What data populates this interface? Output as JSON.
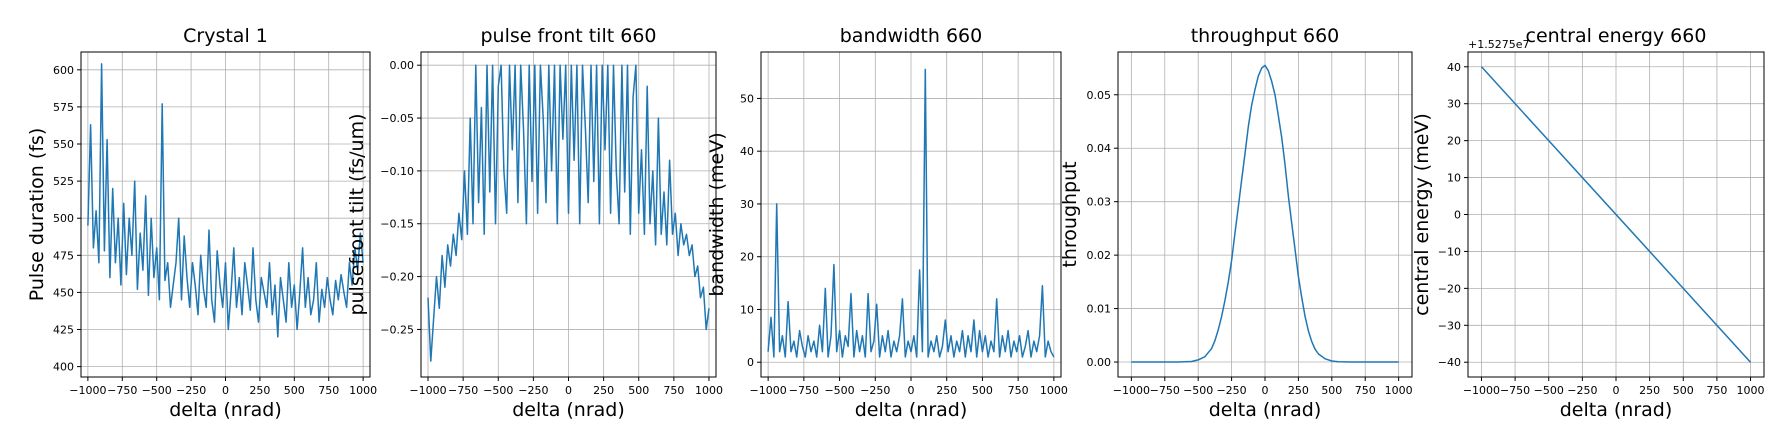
{
  "chart_data": [
    {
      "type": "line",
      "title": "Crystal 1",
      "xlabel": "delta (nrad)",
      "ylabel": "Pulse duration (fs)",
      "xlim": [
        -1050,
        1050
      ],
      "ylim": [
        393,
        612
      ],
      "xticks": [
        -1000,
        -750,
        -500,
        -250,
        0,
        250,
        500,
        750,
        1000
      ],
      "yticks": [
        400,
        425,
        450,
        475,
        500,
        525,
        550,
        575,
        600
      ],
      "ytick_labels": [
        "400",
        "425",
        "450",
        "475",
        "500",
        "525",
        "550",
        "575",
        "600"
      ],
      "grid": true,
      "series": [
        {
          "x": [
            -1000,
            -980,
            -960,
            -940,
            -920,
            -900,
            -880,
            -860,
            -840,
            -820,
            -800,
            -780,
            -760,
            -740,
            -720,
            -700,
            -680,
            -660,
            -640,
            -620,
            -600,
            -580,
            -560,
            -540,
            -520,
            -500,
            -480,
            -460,
            -440,
            -420,
            -400,
            -380,
            -360,
            -340,
            -320,
            -300,
            -280,
            -260,
            -240,
            -220,
            -200,
            -180,
            -160,
            -140,
            -120,
            -100,
            -80,
            -60,
            -40,
            -20,
            0,
            20,
            40,
            60,
            80,
            100,
            120,
            140,
            160,
            180,
            200,
            220,
            240,
            260,
            280,
            300,
            320,
            340,
            360,
            380,
            400,
            420,
            440,
            460,
            480,
            500,
            520,
            540,
            560,
            580,
            600,
            620,
            640,
            660,
            680,
            700,
            720,
            740,
            760,
            780,
            800,
            820,
            840,
            860,
            880,
            900,
            920,
            940,
            960,
            980,
            1000
          ],
          "y": [
            495,
            563,
            480,
            505,
            470,
            604,
            478,
            553,
            460,
            520,
            470,
            500,
            455,
            510,
            462,
            500,
            475,
            525,
            452,
            490,
            465,
            515,
            448,
            500,
            460,
            480,
            445,
            577,
            458,
            470,
            440,
            455,
            470,
            500,
            445,
            488,
            460,
            440,
            470,
            455,
            435,
            475,
            452,
            440,
            492,
            445,
            430,
            478,
            455,
            440,
            470,
            425,
            450,
            480,
            440,
            460,
            435,
            470,
            455,
            438,
            480,
            445,
            430,
            460,
            450,
            440,
            470,
            435,
            455,
            420,
            460,
            445,
            430,
            470,
            440,
            455,
            425,
            450,
            480,
            440,
            460,
            435,
            445,
            470,
            430,
            452,
            440,
            460,
            445,
            435,
            458,
            445,
            462,
            450,
            440,
            470,
            455,
            480,
            465,
            490,
            470
          ]
        }
      ]
    },
    {
      "type": "line",
      "title": "pulse front tilt 660",
      "xlabel": "delta (nrad)",
      "ylabel": "pulsefront tilt (fs/um)",
      "xlim": [
        -1050,
        1050
      ],
      "ylim": [
        -0.295,
        0.0125
      ],
      "xticks": [
        -1000,
        -750,
        -500,
        -250,
        0,
        250,
        500,
        750,
        1000
      ],
      "yticks": [
        -0.25,
        -0.2,
        -0.15,
        -0.1,
        -0.05,
        0.0
      ],
      "ytick_labels": [
        "−0.25",
        "−0.20",
        "−0.15",
        "−0.10",
        "−0.05",
        "0.00"
      ],
      "grid": true,
      "series": [
        {
          "x": [
            -1000,
            -980,
            -960,
            -940,
            -920,
            -900,
            -880,
            -860,
            -840,
            -820,
            -800,
            -780,
            -760,
            -740,
            -720,
            -700,
            -680,
            -660,
            -640,
            -620,
            -600,
            -580,
            -560,
            -540,
            -520,
            -500,
            -480,
            -460,
            -440,
            -420,
            -400,
            -380,
            -360,
            -340,
            -320,
            -300,
            -280,
            -260,
            -240,
            -220,
            -200,
            -180,
            -160,
            -140,
            -120,
            -100,
            -80,
            -60,
            -40,
            -20,
            0,
            20,
            40,
            60,
            80,
            100,
            120,
            140,
            160,
            180,
            200,
            220,
            240,
            260,
            280,
            300,
            320,
            340,
            360,
            380,
            400,
            420,
            440,
            460,
            480,
            500,
            520,
            540,
            560,
            580,
            600,
            620,
            640,
            660,
            680,
            700,
            720,
            740,
            760,
            780,
            800,
            820,
            840,
            860,
            880,
            900,
            920,
            940,
            960,
            980,
            1000
          ],
          "y": [
            -0.22,
            -0.28,
            -0.24,
            -0.2,
            -0.23,
            -0.18,
            -0.21,
            -0.17,
            -0.19,
            -0.16,
            -0.18,
            -0.14,
            -0.165,
            -0.1,
            -0.16,
            -0.05,
            -0.15,
            0.0,
            -0.13,
            -0.04,
            -0.16,
            0.0,
            -0.12,
            0.0,
            -0.15,
            -0.02,
            0.0,
            -0.1,
            -0.14,
            0.0,
            -0.08,
            0.0,
            -0.13,
            0.0,
            -0.06,
            -0.15,
            0.0,
            -0.11,
            0.0,
            -0.14,
            0.0,
            -0.05,
            -0.13,
            0.0,
            -0.1,
            0.0,
            -0.15,
            0.0,
            -0.07,
            0.0,
            -0.14,
            0.0,
            -0.09,
            0.0,
            -0.15,
            0.0,
            -0.06,
            -0.13,
            0.0,
            -0.11,
            0.0,
            -0.15,
            0.0,
            -0.08,
            0.0,
            -0.14,
            0.0,
            -0.1,
            -0.15,
            0.0,
            -0.12,
            0.0,
            -0.16,
            -0.03,
            0.0,
            -0.14,
            -0.08,
            -0.16,
            -0.02,
            -0.15,
            -0.1,
            -0.17,
            -0.05,
            -0.16,
            -0.12,
            -0.17,
            -0.09,
            -0.16,
            -0.14,
            -0.18,
            -0.15,
            -0.17,
            -0.16,
            -0.18,
            -0.17,
            -0.2,
            -0.19,
            -0.22,
            -0.21,
            -0.25,
            -0.23
          ]
        }
      ]
    },
    {
      "type": "line",
      "title": "bandwidth 660",
      "xlabel": "delta (nrad)",
      "ylabel": "bandwidth (meV)",
      "xlim": [
        -1050,
        1050
      ],
      "ylim": [
        -2.8,
        58.8
      ],
      "xticks": [
        -1000,
        -750,
        -500,
        -250,
        0,
        250,
        500,
        750,
        1000
      ],
      "yticks": [
        0,
        10,
        20,
        30,
        40,
        50
      ],
      "ytick_labels": [
        "0",
        "10",
        "20",
        "30",
        "40",
        "50"
      ],
      "grid": true,
      "series": [
        {
          "x": [
            -1000,
            -980,
            -960,
            -940,
            -920,
            -900,
            -880,
            -860,
            -840,
            -820,
            -800,
            -780,
            -760,
            -740,
            -720,
            -700,
            -680,
            -660,
            -640,
            -620,
            -600,
            -580,
            -560,
            -540,
            -520,
            -500,
            -480,
            -460,
            -440,
            -420,
            -400,
            -380,
            -360,
            -340,
            -320,
            -300,
            -280,
            -260,
            -240,
            -220,
            -200,
            -180,
            -160,
            -140,
            -120,
            -100,
            -80,
            -60,
            -40,
            -20,
            0,
            20,
            40,
            60,
            80,
            100,
            120,
            140,
            160,
            180,
            200,
            220,
            240,
            260,
            280,
            300,
            320,
            340,
            360,
            380,
            400,
            420,
            440,
            460,
            480,
            500,
            520,
            540,
            560,
            580,
            600,
            620,
            640,
            660,
            680,
            700,
            720,
            740,
            760,
            780,
            800,
            820,
            840,
            860,
            880,
            900,
            920,
            940,
            960,
            980,
            1000
          ],
          "y": [
            2,
            8.5,
            1,
            30,
            2,
            5,
            1,
            11.5,
            2,
            4,
            1,
            6,
            3,
            1,
            5,
            2,
            4,
            1,
            7,
            2,
            14,
            1,
            5,
            18.5,
            2,
            6,
            1,
            5,
            3,
            13,
            1,
            6,
            2,
            5,
            1,
            13,
            2,
            4,
            11,
            1,
            5,
            2,
            6,
            1,
            4,
            2,
            5,
            12,
            1,
            4,
            2,
            5,
            1,
            17.5,
            2,
            55.5,
            1,
            4,
            2,
            5,
            1,
            3,
            8,
            2,
            5,
            1,
            4,
            2,
            6,
            1,
            5,
            2,
            8,
            1,
            6,
            2,
            5,
            1,
            4,
            2,
            12,
            1,
            5,
            2,
            6,
            1,
            4,
            2,
            5,
            1,
            3,
            6,
            1,
            4,
            2,
            5,
            14.5,
            1,
            4,
            2,
            1
          ]
        }
      ]
    },
    {
      "type": "line",
      "title": "throughput 660",
      "xlabel": "delta (nrad)",
      "ylabel": "throughput",
      "xlim": [
        -1100,
        1100
      ],
      "ylim": [
        -0.0028,
        0.058
      ],
      "xticks": [
        -1000,
        -750,
        -500,
        -250,
        0,
        250,
        500,
        750,
        1000
      ],
      "yticks": [
        0.0,
        0.01,
        0.02,
        0.03,
        0.04,
        0.05
      ],
      "ytick_labels": [
        "0.00",
        "0.01",
        "0.02",
        "0.03",
        "0.04",
        "0.05"
      ],
      "grid": true,
      "series": [
        {
          "x": [
            -1000,
            -950,
            -900,
            -850,
            -800,
            -750,
            -700,
            -650,
            -600,
            -550,
            -500,
            -450,
            -400,
            -375,
            -350,
            -325,
            -300,
            -275,
            -250,
            -225,
            -200,
            -175,
            -150,
            -125,
            -100,
            -75,
            -50,
            -25,
            0,
            25,
            50,
            75,
            100,
            125,
            150,
            175,
            200,
            225,
            250,
            275,
            300,
            325,
            350,
            375,
            400,
            450,
            500,
            550,
            600,
            650,
            700,
            750,
            800,
            850,
            900,
            950,
            1000
          ],
          "y": [
            0,
            0,
            0,
            0,
            0,
            0,
            0,
            0,
            5e-05,
            0.0001,
            0.0004,
            0.001,
            0.0025,
            0.004,
            0.006,
            0.0085,
            0.0115,
            0.015,
            0.019,
            0.024,
            0.029,
            0.034,
            0.039,
            0.044,
            0.048,
            0.051,
            0.0535,
            0.055,
            0.0555,
            0.0545,
            0.0525,
            0.05,
            0.046,
            0.042,
            0.037,
            0.031,
            0.026,
            0.021,
            0.016,
            0.012,
            0.0085,
            0.0058,
            0.0038,
            0.0024,
            0.0015,
            0.0006,
            0.0002,
            7e-05,
            2e-05,
            0,
            0,
            0,
            0,
            0,
            0,
            0,
            0
          ]
        }
      ]
    },
    {
      "type": "line",
      "title": "central energy 660",
      "xlabel": "delta (nrad)",
      "ylabel": "central energy (meV)",
      "offset_text": "+1.5275e7",
      "xlim": [
        -1100,
        1100
      ],
      "ylim": [
        -44,
        44
      ],
      "xticks": [
        -1000,
        -750,
        -500,
        -250,
        0,
        250,
        500,
        750,
        1000
      ],
      "yticks": [
        -40,
        -30,
        -20,
        -10,
        0,
        10,
        20,
        30,
        40
      ],
      "ytick_labels": [
        "−40",
        "−30",
        "−20",
        "−10",
        "0",
        "10",
        "20",
        "30",
        "40"
      ],
      "grid": true,
      "series": [
        {
          "x": [
            -1000,
            1000
          ],
          "y": [
            40,
            -40
          ]
        }
      ]
    }
  ]
}
